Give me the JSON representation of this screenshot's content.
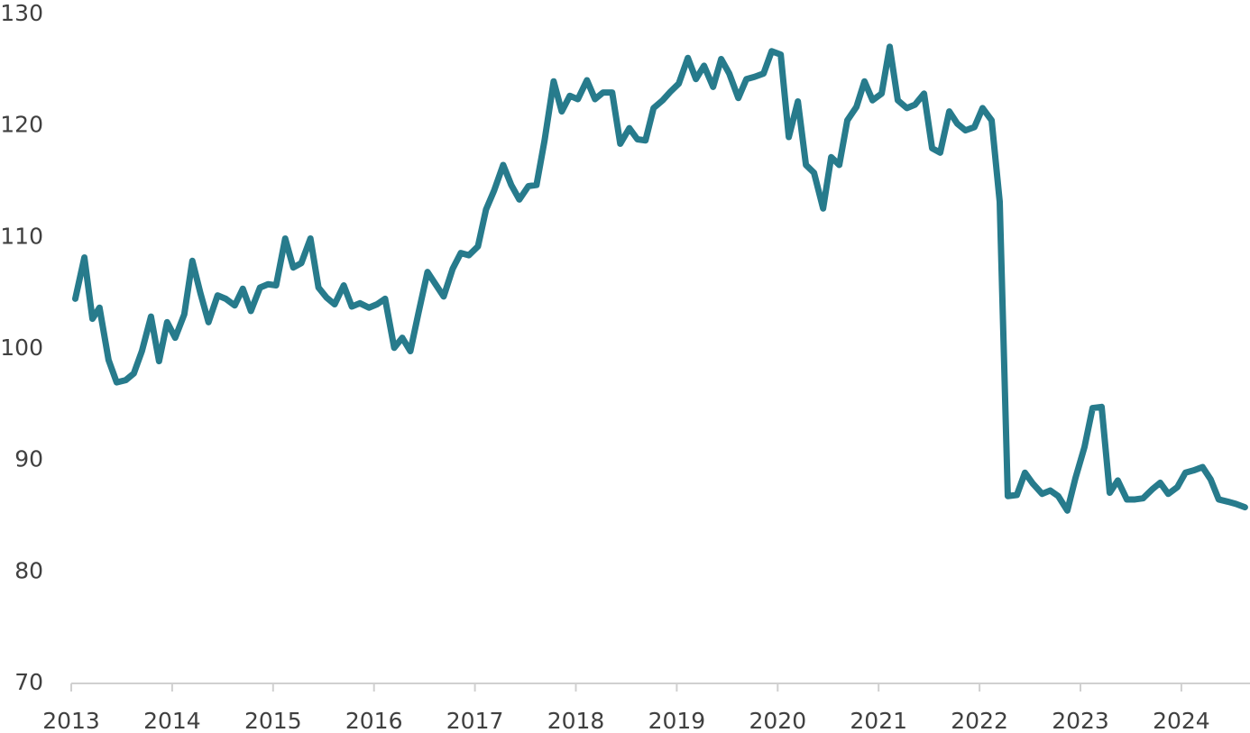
{
  "chart_data": {
    "type": "line",
    "color": "#277b8c",
    "line_width": 7,
    "x": [
      2013.04,
      2013.13,
      2013.21,
      2013.28,
      2013.37,
      2013.45,
      2013.54,
      2013.62,
      2013.7,
      2013.79,
      2013.87,
      2013.95,
      2014.03,
      2014.12,
      2014.2,
      2014.28,
      2014.36,
      2014.45,
      2014.53,
      2014.62,
      2014.7,
      2014.78,
      2014.87,
      2014.95,
      2015.03,
      2015.12,
      2015.2,
      2015.28,
      2015.37,
      2015.45,
      2015.53,
      2015.61,
      2015.7,
      2015.78,
      2015.86,
      2015.95,
      2016.03,
      2016.11,
      2016.2,
      2016.28,
      2016.36,
      2016.44,
      2016.53,
      2016.61,
      2016.69,
      2016.78,
      2016.86,
      2016.94,
      2017.03,
      2017.11,
      2017.19,
      2017.28,
      2017.36,
      2017.44,
      2017.53,
      2017.61,
      2017.69,
      2017.78,
      2017.86,
      2017.94,
      2018.02,
      2018.11,
      2018.19,
      2018.27,
      2018.36,
      2018.44,
      2018.53,
      2018.61,
      2018.69,
      2018.77,
      2018.86,
      2018.94,
      2019.02,
      2019.11,
      2019.19,
      2019.27,
      2019.36,
      2019.44,
      2019.52,
      2019.61,
      2019.69,
      2019.77,
      2019.86,
      2019.94,
      2020.03,
      2020.11,
      2020.2,
      2020.28,
      2020.36,
      2020.45,
      2020.53,
      2020.61,
      2020.69,
      2020.78,
      2020.86,
      2020.94,
      2021.03,
      2021.11,
      2021.19,
      2021.28,
      2021.36,
      2021.45,
      2021.53,
      2021.61,
      2021.7,
      2021.78,
      2021.86,
      2021.95,
      2022.03,
      2022.12,
      2022.2,
      2022.28,
      2022.37,
      2022.45,
      2022.53,
      2022.62,
      2022.7,
      2022.78,
      2022.87,
      2022.95,
      2023.04,
      2023.12,
      2023.21,
      2023.29,
      2023.37,
      2023.46,
      2023.54,
      2023.62,
      2023.71,
      2023.79,
      2023.87,
      2023.96,
      2024.04,
      2024.12,
      2024.21,
      2024.29,
      2024.37,
      2024.46,
      2024.54,
      2024.63
    ],
    "values": [
      104.5,
      108.2,
      102.7,
      103.7,
      99.0,
      97.0,
      97.2,
      97.8,
      99.8,
      102.9,
      98.9,
      102.4,
      101.0,
      103.1,
      107.9,
      105.0,
      102.4,
      104.8,
      104.5,
      103.9,
      105.4,
      103.4,
      105.5,
      105.8,
      105.7,
      109.9,
      107.3,
      107.7,
      109.9,
      105.5,
      104.6,
      104.0,
      105.7,
      103.8,
      104.1,
      103.7,
      104.0,
      104.5,
      100.1,
      101.0,
      99.8,
      103.2,
      106.9,
      105.8,
      104.7,
      107.2,
      108.6,
      108.4,
      109.2,
      112.5,
      114.2,
      116.5,
      114.7,
      113.4,
      114.6,
      114.7,
      118.7,
      124.0,
      121.3,
      122.7,
      122.4,
      124.1,
      122.4,
      123.0,
      123.0,
      118.4,
      119.8,
      118.8,
      118.7,
      121.6,
      122.3,
      123.1,
      123.8,
      126.1,
      124.2,
      125.4,
      123.5,
      126.0,
      124.7,
      122.5,
      124.2,
      124.4,
      124.7,
      126.7,
      126.4,
      119.0,
      122.2,
      116.5,
      115.8,
      112.6,
      117.2,
      116.5,
      120.5,
      121.7,
      124.0,
      122.3,
      122.9,
      127.1,
      122.3,
      121.6,
      121.9,
      122.9,
      118.0,
      117.6,
      121.3,
      120.2,
      119.6,
      119.9,
      121.6,
      120.5,
      113.2,
      86.8,
      86.9,
      88.9,
      87.9,
      87.0,
      87.3,
      86.8,
      85.5,
      88.4,
      91.2,
      94.7,
      94.8,
      87.1,
      88.2,
      86.5,
      86.5,
      86.6,
      87.4,
      88.0,
      87.0,
      87.6,
      88.9,
      89.1,
      89.4,
      88.3,
      86.5,
      86.3,
      86.1,
      85.8
    ],
    "xlim": [
      2013,
      2024.68
    ],
    "xticks": [
      2013,
      2014,
      2015,
      2016,
      2017,
      2018,
      2019,
      2020,
      2021,
      2022,
      2023,
      2024
    ],
    "ylim": [
      70,
      130
    ],
    "yticks": [
      70,
      80,
      90,
      100,
      110,
      120,
      130
    ],
    "grid": false
  }
}
